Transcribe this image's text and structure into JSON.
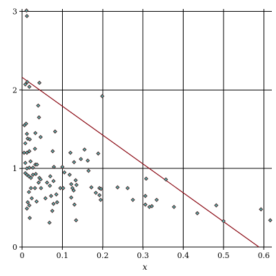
{
  "chart_data": {
    "type": "scatter",
    "title": "",
    "xlabel": "x",
    "ylabel": "",
    "xlim": [
      0,
      0.62
    ],
    "ylim": [
      0,
      3.03
    ],
    "grid": true,
    "x_ticks": [
      {
        "value": 0,
        "label": "0"
      },
      {
        "value": 0.1,
        "label": "0.1"
      },
      {
        "value": 0.2,
        "label": "0.2"
      },
      {
        "value": 0.3,
        "label": "0.3"
      },
      {
        "value": 0.4,
        "label": "0.4"
      },
      {
        "value": 0.5,
        "label": "0.5"
      },
      {
        "value": 0.6,
        "label": "0.6"
      }
    ],
    "y_ticks": [
      {
        "value": 0,
        "label": "0"
      },
      {
        "value": 1,
        "label": "1"
      },
      {
        "value": 2,
        "label": "2"
      },
      {
        "value": 3,
        "label": "3"
      }
    ],
    "colors": {
      "point_stroke": "#4a2e2e",
      "point_fill": "#5fb3b3",
      "line": "#8b0a14",
      "grid": "#000000",
      "axis": "#000000"
    },
    "points": [
      [
        0.011,
        3.01
      ],
      [
        0.012,
        2.94
      ],
      [
        0.008,
        2.07
      ],
      [
        0.013,
        2.1
      ],
      [
        0.018,
        2.04
      ],
      [
        0.043,
        2.09
      ],
      [
        0.006,
        1.55
      ],
      [
        0.04,
        1.8
      ],
      [
        0.042,
        1.65
      ],
      [
        0.01,
        1.57
      ],
      [
        0.012,
        1.44
      ],
      [
        0.014,
        1.38
      ],
      [
        0.019,
        1.37
      ],
      [
        0.033,
        1.45
      ],
      [
        0.008,
        1.32
      ],
      [
        0.005,
        1.2
      ],
      [
        0.012,
        1.2
      ],
      [
        0.018,
        1.22
      ],
      [
        0.021,
        1.09
      ],
      [
        0.032,
        1.25
      ],
      [
        0.046,
        1.4
      ],
      [
        0.008,
        1.07
      ],
      [
        0.012,
        1.0
      ],
      [
        0.018,
        1.01
      ],
      [
        0.027,
        1.01
      ],
      [
        0.033,
        1.05
      ],
      [
        0.037,
        1.05
      ],
      [
        0.008,
        0.94
      ],
      [
        0.012,
        0.92
      ],
      [
        0.017,
        0.9
      ],
      [
        0.022,
        0.88
      ],
      [
        0.027,
        0.92
      ],
      [
        0.034,
        0.93
      ],
      [
        0.041,
        0.82
      ],
      [
        0.043,
        0.88
      ],
      [
        0.046,
        0.86
      ],
      [
        0.017,
        0.7
      ],
      [
        0.022,
        0.75
      ],
      [
        0.032,
        0.75
      ],
      [
        0.014,
        0.57
      ],
      [
        0.018,
        0.53
      ],
      [
        0.012,
        0.49
      ],
      [
        0.024,
        0.62
      ],
      [
        0.019,
        0.37
      ],
      [
        0.036,
        0.58
      ],
      [
        0.047,
        0.75
      ],
      [
        0.076,
        1.22
      ],
      [
        0.082,
        1.47
      ],
      [
        0.07,
        0.9
      ],
      [
        0.062,
        0.82
      ],
      [
        0.069,
        0.78
      ],
      [
        0.079,
        1.02
      ],
      [
        0.078,
        0.84
      ],
      [
        0.085,
        0.67
      ],
      [
        0.1,
        1.02
      ],
      [
        0.105,
        0.95
      ],
      [
        0.095,
        0.75
      ],
      [
        0.078,
        0.55
      ],
      [
        0.087,
        0.57
      ],
      [
        0.072,
        0.65
      ],
      [
        0.058,
        0.62
      ],
      [
        0.075,
        0.46
      ],
      [
        0.068,
        0.31
      ],
      [
        0.102,
        0.75
      ],
      [
        0.118,
        0.92
      ],
      [
        0.122,
        0.8
      ],
      [
        0.125,
        0.75
      ],
      [
        0.129,
        1.08
      ],
      [
        0.133,
        0.85
      ],
      [
        0.135,
        0.79
      ],
      [
        0.128,
        0.72
      ],
      [
        0.122,
        0.63
      ],
      [
        0.13,
        0.54
      ],
      [
        0.134,
        0.34
      ],
      [
        0.12,
        1.2
      ],
      [
        0.146,
        1.12
      ],
      [
        0.155,
        1.24
      ],
      [
        0.163,
        1.1
      ],
      [
        0.165,
        0.97
      ],
      [
        0.172,
        0.76
      ],
      [
        0.183,
        0.69
      ],
      [
        0.189,
        1.19
      ],
      [
        0.192,
        0.66
      ],
      [
        0.195,
        0.6
      ],
      [
        0.192,
        0.75
      ],
      [
        0.199,
        1.92
      ],
      [
        0.196,
        0.74
      ],
      [
        0.237,
        0.76
      ],
      [
        0.262,
        0.75
      ],
      [
        0.275,
        0.6
      ],
      [
        0.306,
        0.54
      ],
      [
        0.308,
        0.87
      ],
      [
        0.306,
        0.65
      ],
      [
        0.316,
        0.51
      ],
      [
        0.322,
        0.52
      ],
      [
        0.334,
        0.6
      ],
      [
        0.357,
        0.86
      ],
      [
        0.377,
        0.51
      ],
      [
        0.435,
        0.43
      ],
      [
        0.482,
        0.53
      ],
      [
        0.5,
        0.33
      ],
      [
        0.593,
        0.48
      ],
      [
        0.616,
        0.34
      ]
    ],
    "fit_line": {
      "x": [
        0,
        0.588
      ],
      "y": [
        2.16,
        0
      ]
    }
  }
}
